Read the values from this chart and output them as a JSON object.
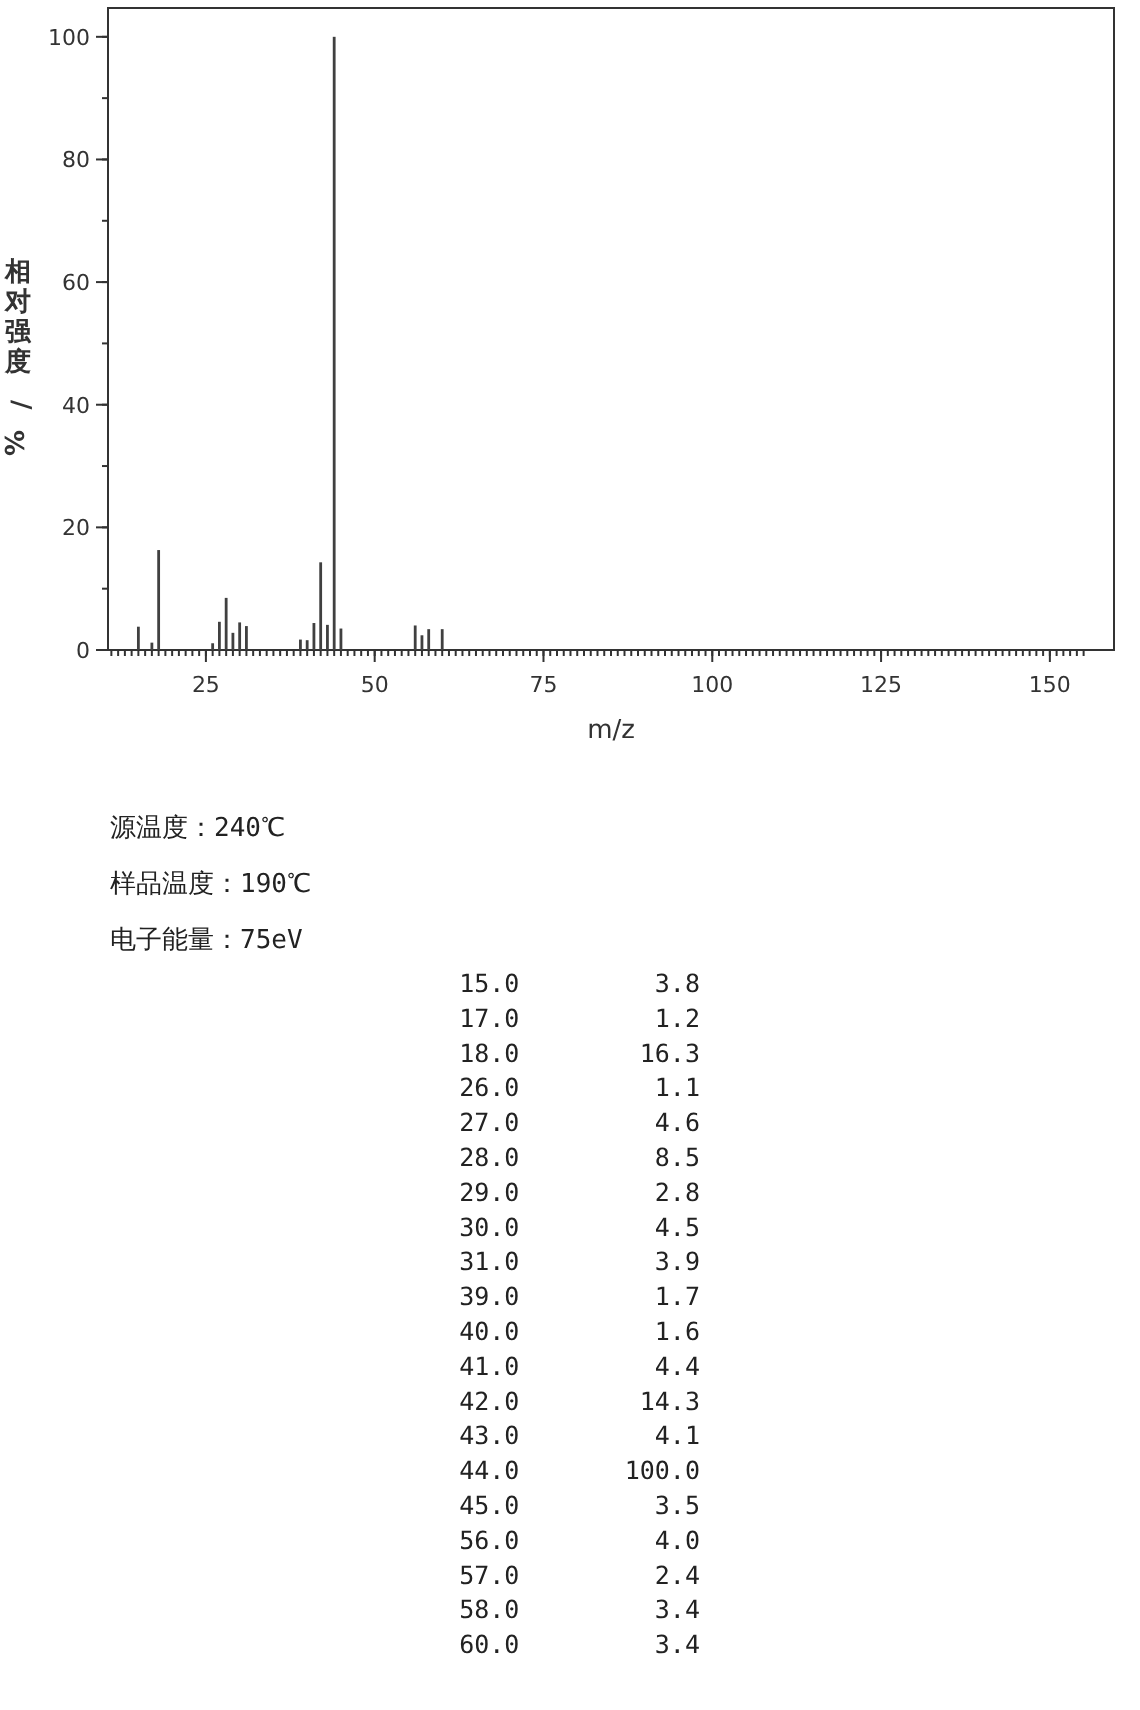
{
  "chart_data": {
    "type": "bar",
    "xlabel": "m/z",
    "ylabel": "相对强度/%",
    "x": [
      15,
      17,
      18,
      26,
      27,
      28,
      29,
      30,
      31,
      39,
      40,
      41,
      42,
      43,
      44,
      45,
      56,
      57,
      58,
      60
    ],
    "values": [
      3.8,
      1.2,
      16.3,
      1.1,
      4.6,
      8.5,
      2.8,
      4.5,
      3.9,
      1.7,
      1.6,
      4.4,
      14.3,
      4.1,
      100.0,
      3.5,
      4.0,
      2.4,
      3.4,
      3.4
    ],
    "color": "#404040",
    "xlim": [
      10.5,
      159.5
    ],
    "ylim": [
      0,
      104.7
    ],
    "xticks": [
      25,
      50,
      75,
      100,
      125,
      150
    ],
    "yticks": [
      0,
      20,
      40,
      60,
      80,
      100
    ],
    "annotations": [
      "源温度：240℃",
      "样品温度：190℃",
      "电子能量：75eV",
      "15.0         3.8",
      "17.0         1.2",
      "18.0        16.3",
      "26.0         1.1",
      "27.0         4.6",
      "28.0         8.5",
      "29.0         2.8",
      "30.0         4.5",
      "31.0         3.9",
      "39.0         1.7",
      "40.0         1.6",
      "41.0         4.4",
      "42.0        14.3",
      "43.0         4.1",
      "44.0       100.0",
      "45.0         3.5",
      "56.0         4.0",
      "57.0         2.4",
      "58.0         3.4",
      "60.0         3.4"
    ]
  }
}
